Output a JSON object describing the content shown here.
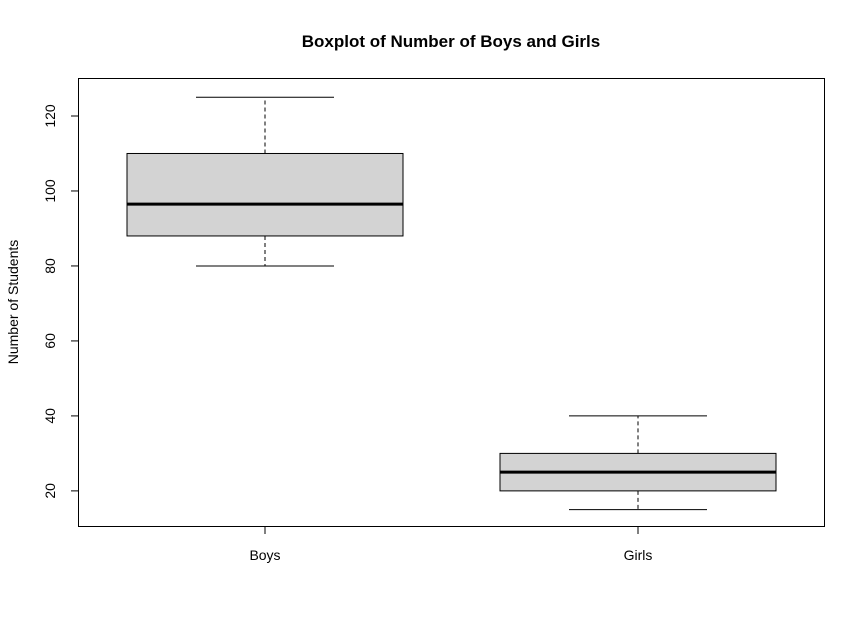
{
  "chart_data": {
    "type": "boxplot",
    "title": "Boxplot of Number of Boys and Girls",
    "xlabel": "",
    "ylabel": "Number of Students",
    "ylim": [
      10.5,
      130
    ],
    "yticks": [
      20,
      40,
      60,
      80,
      100,
      120
    ],
    "categories": [
      "Boys",
      "Girls"
    ],
    "boxes": [
      {
        "category": "Boys",
        "min": 80,
        "q1": 88,
        "median": 96.5,
        "q3": 110,
        "max": 125
      },
      {
        "category": "Girls",
        "min": 15,
        "q1": 20,
        "median": 25,
        "q3": 30,
        "max": 40
      }
    ],
    "box_fill": "#d3d3d3",
    "grid": false
  }
}
